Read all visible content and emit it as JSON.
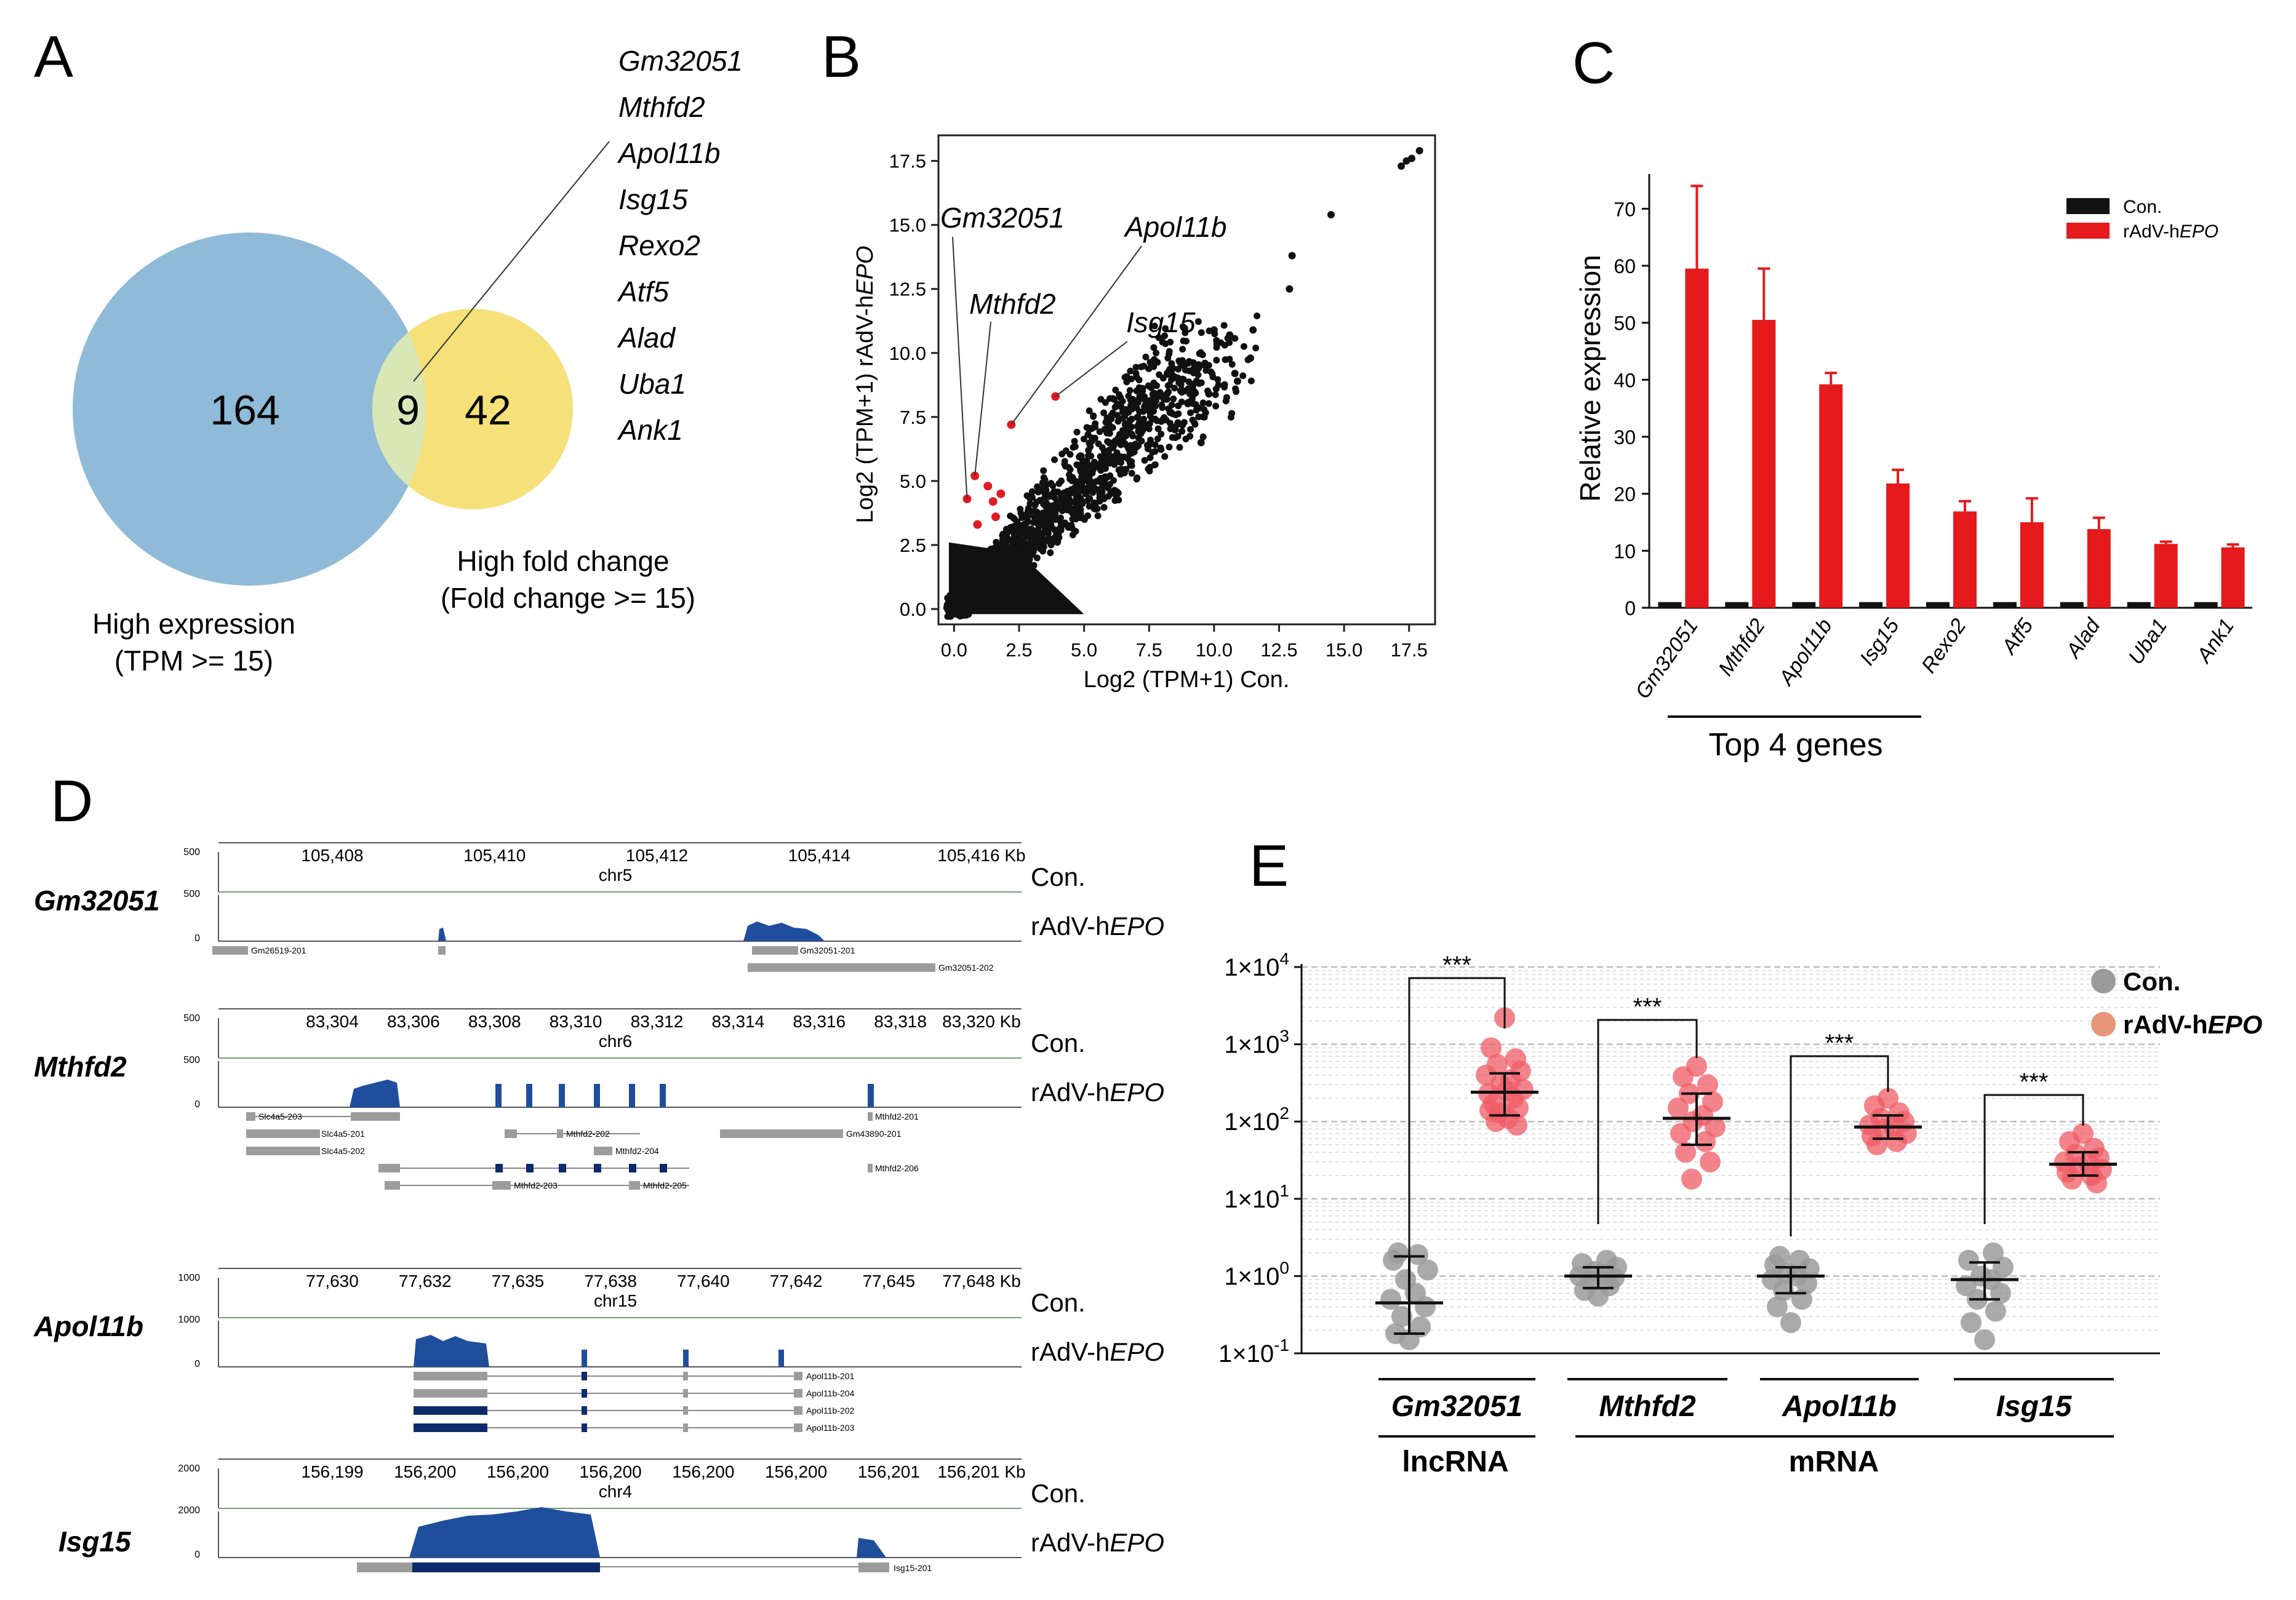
{
  "panels": {
    "A": {
      "letter": "A",
      "venn": {
        "left_count": "164",
        "overlap_count": "9",
        "right_count": "42",
        "left_label_line1": "High expression",
        "left_label_line2": "(TPM >= 15)",
        "right_label_line1": "High fold change",
        "right_label_line2": "(Fold change >= 15)",
        "left_color": "#8fbad8",
        "right_color": "#f6e07a",
        "overlap_color": "#d9e6b6"
      },
      "genes": [
        "Gm32051",
        "Mthfd2",
        "Apol11b",
        "Isg15",
        "Rexo2",
        "Atf5",
        "Alad",
        "Uba1",
        "Ank1"
      ]
    },
    "B": {
      "letter": "B"
    },
    "C": {
      "letter": "C",
      "bracket_label": "Top 4 genes"
    },
    "D": {
      "letter": "D",
      "con_label": "Con.",
      "epo_label_prefix": "rAdV-h",
      "epo_label_italic": "EPO",
      "tracks": [
        {
          "gene": "Gm32051",
          "chrom": "chr5",
          "ticks": [
            "105,408",
            "105,410",
            "105,412",
            "105,414",
            "105,416 Kb"
          ],
          "scale_top": "500",
          "scale_mid": "500",
          "scale_zero": "0",
          "transcripts": [
            "Gm26519-201",
            "Gm32051-201",
            "Gm32051-202"
          ]
        },
        {
          "gene": "Mthfd2",
          "chrom": "chr6",
          "ticks": [
            "83,304",
            "83,306",
            "83,308",
            "83,310",
            "83,312",
            "83,314",
            "83,316",
            "83,318",
            "83,320 Kb"
          ],
          "scale_top": "500",
          "scale_mid": "500",
          "scale_zero": "0",
          "transcripts": [
            "Slc4a5-203",
            "Mthfd2-201",
            "Slc4a5-201",
            "Mthfd2-202",
            "Gm43890-201",
            "Slc4a5-202",
            "Mthfd2-204",
            "Mthfd2-206",
            "Mthfd2-203",
            "Mthfd2-205"
          ]
        },
        {
          "gene": "Apol11b",
          "chrom": "chr15",
          "ticks": [
            "77,630",
            "77,632",
            "77,635",
            "77,638",
            "77,640",
            "77,642",
            "77,645",
            "77,648 Kb"
          ],
          "scale_top": "1000",
          "scale_mid": "1000",
          "scale_zero": "0",
          "transcripts": [
            "Apol11b-201",
            "Apol11b-204",
            "Apol11b-202",
            "Apol11b-203"
          ]
        },
        {
          "gene": "Isg15",
          "chrom": "chr4",
          "ticks": [
            "156,199",
            "156,200",
            "156,200",
            "156,200",
            "156,200",
            "156,200",
            "156,201",
            "156,201 Kb"
          ],
          "scale_top": "2000",
          "scale_mid": "2000",
          "scale_zero": "0",
          "transcripts": [
            "Isg15-201"
          ]
        }
      ]
    },
    "E": {
      "letter": "E",
      "lncrna_label": "lncRNA",
      "mrna_label": "mRNA"
    }
  },
  "chart_data": [
    {
      "panel": "B",
      "type": "scatter",
      "xlabel": "Log2 (TPM+1) Con.",
      "ylabel_prefix": "Log2 (TPM+1) rAdV-h",
      "ylabel_italic": "EPO",
      "xlim": [
        -0.6,
        18.5
      ],
      "ylim": [
        -0.6,
        18.5
      ],
      "xticks": [
        0.0,
        2.5,
        5.0,
        7.5,
        10.0,
        12.5,
        15.0,
        17.5
      ],
      "yticks": [
        0.0,
        2.5,
        5.0,
        7.5,
        10.0,
        12.5,
        15.0,
        17.5
      ],
      "tick_labels": [
        "0.0",
        "2.5",
        "5.0",
        "7.5",
        "10.0",
        "12.5",
        "15.0",
        "17.5"
      ],
      "highlighted_points": [
        {
          "x": 2.2,
          "y": 7.2
        },
        {
          "x": 3.9,
          "y": 8.3
        },
        {
          "x": 0.8,
          "y": 5.2
        },
        {
          "x": 1.3,
          "y": 4.8
        },
        {
          "x": 1.5,
          "y": 4.2
        },
        {
          "x": 1.8,
          "y": 4.5
        },
        {
          "x": 1.6,
          "y": 3.6
        },
        {
          "x": 0.5,
          "y": 4.3
        },
        {
          "x": 0.9,
          "y": 3.3
        }
      ],
      "outlier_points": [
        {
          "x": 17.2,
          "y": 17.3
        },
        {
          "x": 17.4,
          "y": 17.5
        },
        {
          "x": 17.6,
          "y": 17.6
        },
        {
          "x": 17.9,
          "y": 17.9
        },
        {
          "x": 14.5,
          "y": 15.4
        },
        {
          "x": 13.0,
          "y": 13.8
        },
        {
          "x": 12.9,
          "y": 12.5
        },
        {
          "x": 10.0,
          "y": 10.9
        },
        {
          "x": 10.6,
          "y": 10.7
        },
        {
          "x": 11.5,
          "y": 10.9
        },
        {
          "x": 11.4,
          "y": 9.8
        },
        {
          "x": 10.8,
          "y": 9.2
        },
        {
          "x": 10.9,
          "y": 8.9
        },
        {
          "x": 9.8,
          "y": 8.4
        },
        {
          "x": 9.5,
          "y": 6.5
        },
        {
          "x": 8.5,
          "y": 7.0
        }
      ],
      "annotations": [
        "Gm32051",
        "Mthfd2",
        "Apol11b",
        "Isg15"
      ],
      "colors": {
        "points": "#111111",
        "highlight": "#e01b24"
      }
    },
    {
      "panel": "C",
      "type": "bar",
      "ylabel": "Relative expression",
      "ylim": [
        0,
        75
      ],
      "yticks": [
        0,
        10,
        20,
        30,
        40,
        50,
        60,
        70
      ],
      "categories": [
        "Gm32051",
        "Mthfd2",
        "Apol11b",
        "Isg15",
        "Rexo2",
        "Atf5",
        "Alad",
        "Uba1",
        "Ank1"
      ],
      "series": [
        {
          "name": "Con.",
          "color": "#111111",
          "values": [
            1,
            1,
            1,
            1,
            1,
            1,
            1,
            1,
            1
          ],
          "errors": [
            0.2,
            0.2,
            0.2,
            0.2,
            0.2,
            0.2,
            0.2,
            0.2,
            0.2
          ]
        },
        {
          "name_prefix": "rAdV-h",
          "name_italic": "EPO",
          "color": "#e41a1c",
          "values": [
            59.5,
            50.5,
            39.2,
            21.8,
            16.9,
            15.0,
            13.8,
            11.2,
            10.6
          ],
          "errors": [
            14.5,
            9.0,
            2.0,
            2.4,
            1.8,
            4.2,
            2.0,
            0.4,
            0.5
          ]
        }
      ]
    },
    {
      "panel": "E",
      "type": "scatter",
      "yscale": "log",
      "ylim": [
        0.1,
        10000
      ],
      "ytick_labels": [
        {
          "value": 10000,
          "base": "1×10",
          "exp": "4"
        },
        {
          "value": 1000,
          "base": "1×10",
          "exp": "3"
        },
        {
          "value": 100,
          "base": "1×10",
          "exp": "2"
        },
        {
          "value": 10,
          "base": "1×10",
          "exp": "1"
        },
        {
          "value": 1,
          "base": "1×10",
          "exp": "0"
        },
        {
          "value": 0.1,
          "base": "1×10",
          "exp": "-1"
        }
      ],
      "legend": [
        {
          "label": "Con.",
          "color": "#9b9b9b"
        },
        {
          "label_prefix": "rAdV-h",
          "label_italic": "EPO",
          "color": "#e8967a"
        }
      ],
      "significance": "***",
      "groups": [
        {
          "gene": "Gm32051",
          "con": {
            "median": 0.45,
            "low": 0.18,
            "high": 1.8,
            "points": [
              0.15,
              0.18,
              0.22,
              0.3,
              0.4,
              0.5,
              0.6,
              0.9,
              1.2,
              1.6,
              1.9,
              2.0
            ]
          },
          "epo": {
            "median": 240,
            "low": 120,
            "high": 420,
            "points": [
              2200,
              900,
              650,
              550,
              450,
              400,
              350,
              300,
              260,
              230,
              200,
              170,
              150,
              130,
              110,
              100,
              90,
              140,
              250
            ]
          }
        },
        {
          "gene": "Mthfd2",
          "con": {
            "median": 1.0,
            "low": 0.7,
            "high": 1.3,
            "points": [
              0.55,
              0.65,
              0.75,
              0.85,
              0.95,
              1.0,
              1.05,
              1.15,
              1.3,
              1.45,
              1.6
            ]
          },
          "epo": {
            "median": 110,
            "low": 50,
            "high": 230,
            "points": [
              520,
              380,
              300,
              230,
              180,
              150,
              120,
              100,
              85,
              70,
              55,
              40,
              30,
              18
            ]
          }
        },
        {
          "gene": "Apol11b",
          "con": {
            "median": 1.0,
            "low": 0.6,
            "high": 1.3,
            "points": [
              0.25,
              0.4,
              0.5,
              0.65,
              0.8,
              0.9,
              1.0,
              1.1,
              1.25,
              1.4,
              1.6,
              1.8
            ]
          },
          "epo": {
            "median": 85,
            "low": 60,
            "high": 120,
            "points": [
              200,
              160,
              130,
              110,
              100,
              90,
              85,
              80,
              70,
              65,
              55,
              50
            ]
          }
        },
        {
          "gene": "Isg15",
          "con": {
            "median": 0.9,
            "low": 0.5,
            "high": 1.5,
            "points": [
              0.15,
              0.25,
              0.35,
              0.5,
              0.6,
              0.75,
              0.9,
              1.0,
              1.3,
              1.6,
              2.0
            ]
          },
          "epo": {
            "median": 28,
            "low": 20,
            "high": 40,
            "points": [
              70,
              55,
              45,
              38,
              34,
              30,
              28,
              26,
              24,
              22,
              20,
              18,
              16
            ]
          }
        }
      ]
    }
  ]
}
